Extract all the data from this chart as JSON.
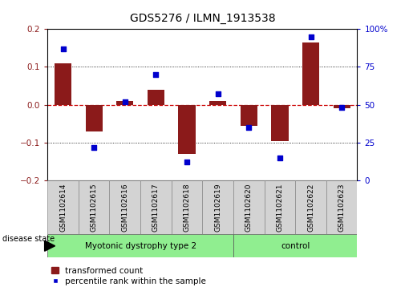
{
  "title": "GDS5276 / ILMN_1913538",
  "samples": [
    "GSM1102614",
    "GSM1102615",
    "GSM1102616",
    "GSM1102617",
    "GSM1102618",
    "GSM1102619",
    "GSM1102620",
    "GSM1102621",
    "GSM1102622",
    "GSM1102623"
  ],
  "transformed_count": [
    0.11,
    -0.07,
    0.01,
    0.04,
    -0.13,
    0.01,
    -0.055,
    -0.095,
    0.165,
    -0.01
  ],
  "percentile_rank": [
    87,
    22,
    52,
    70,
    12,
    57,
    35,
    15,
    95,
    48
  ],
  "groups": [
    {
      "label": "Myotonic dystrophy type 2",
      "start": 0,
      "end": 6,
      "color": "#90EE90"
    },
    {
      "label": "control",
      "start": 6,
      "end": 10,
      "color": "#90EE90"
    }
  ],
  "ylim_left": [
    -0.2,
    0.2
  ],
  "ylim_right": [
    0,
    100
  ],
  "yticks_left": [
    -0.2,
    -0.1,
    0.0,
    0.1,
    0.2
  ],
  "yticks_right": [
    0,
    25,
    50,
    75,
    100
  ],
  "bar_color": "#8B1A1A",
  "dot_color": "#0000CD",
  "zero_line_color": "#CC0000",
  "disease_state_label": "disease state",
  "legend_bar": "transformed count",
  "legend_dot": "percentile rank within the sample",
  "background_color": "#ffffff",
  "grid_color": "#000000"
}
